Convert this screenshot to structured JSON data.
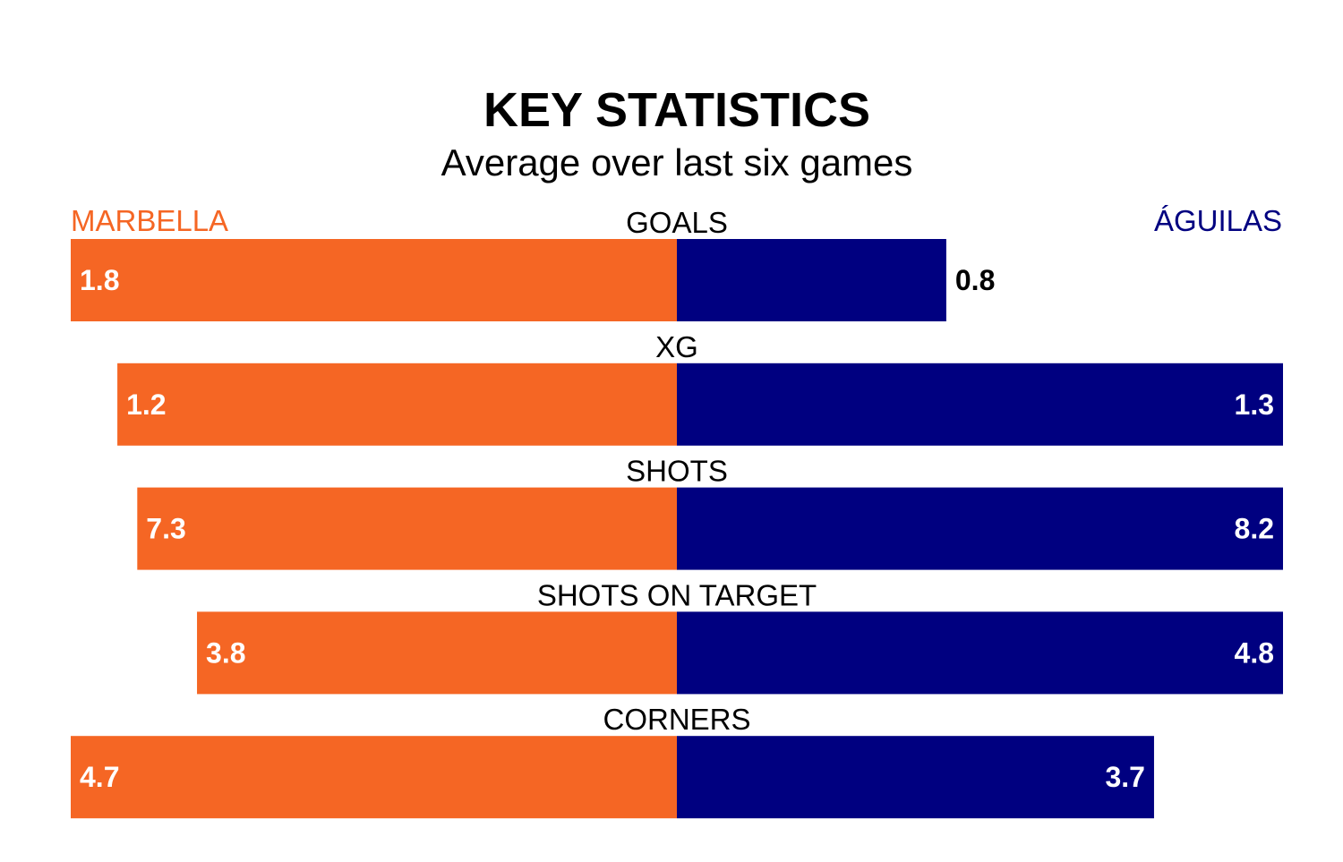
{
  "chart_data": {
    "type": "bar",
    "orientation": "horizontal-diverging",
    "title": "KEY STATISTICS",
    "subtitle": "Average over last six games",
    "categories": [
      "GOALS",
      "XG",
      "SHOTS",
      "SHOTS ON TARGET",
      "CORNERS"
    ],
    "series": [
      {
        "name": "MARBELLA",
        "color": "#F56624",
        "side": "left",
        "values": [
          1.8,
          1.2,
          7.3,
          3.8,
          4.7
        ]
      },
      {
        "name": "ÁGUILAS",
        "color": "#000080",
        "side": "right",
        "values": [
          0.8,
          1.3,
          8.2,
          4.8,
          3.7
        ]
      }
    ],
    "scale": "each row normalized to the larger value",
    "grid": false
  }
}
